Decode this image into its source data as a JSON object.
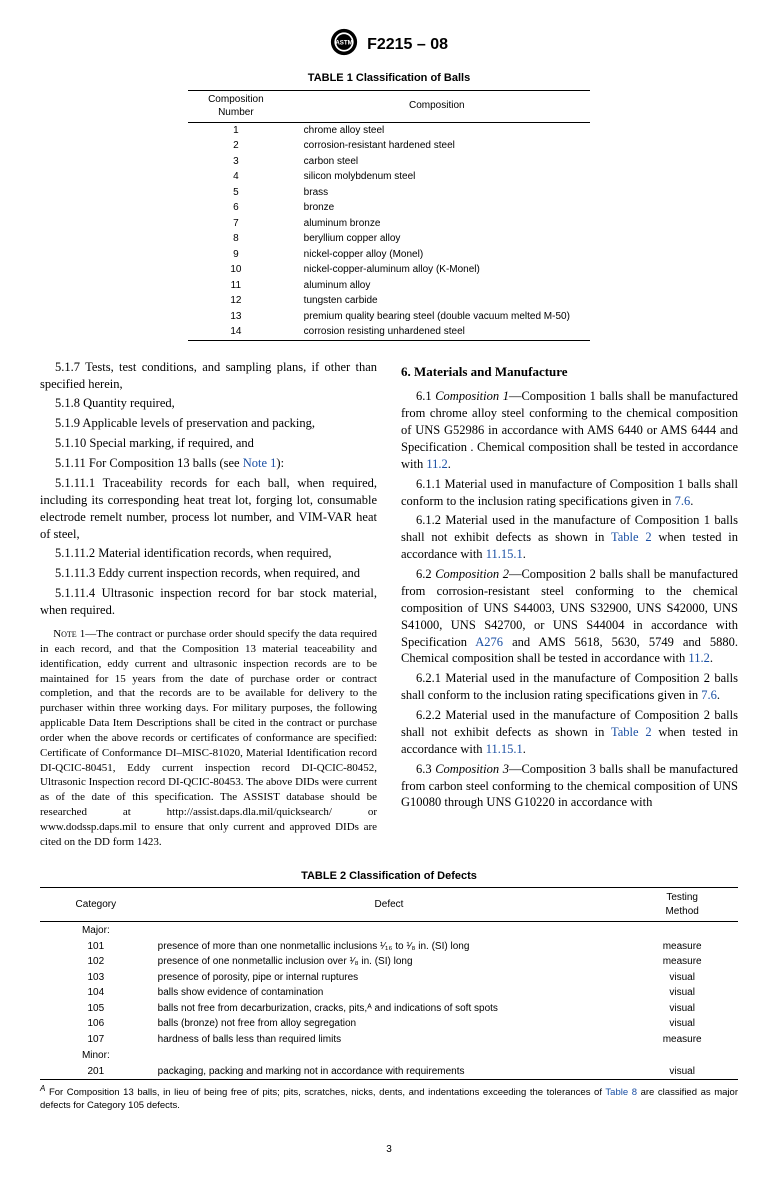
{
  "doc_number": "F2215 – 08",
  "table1": {
    "title": "TABLE 1 Classification of Balls",
    "head_left": "Composition\nNumber",
    "head_right": "Composition",
    "rows": [
      [
        "1",
        "chrome alloy steel"
      ],
      [
        "2",
        "corrosion-resistant hardened steel"
      ],
      [
        "3",
        "carbon steel"
      ],
      [
        "4",
        "silicon molybdenum steel"
      ],
      [
        "5",
        "brass"
      ],
      [
        "6",
        "bronze"
      ],
      [
        "7",
        "aluminum bronze"
      ],
      [
        "8",
        "beryllium copper alloy"
      ],
      [
        "9",
        "nickel-copper alloy (Monel)"
      ],
      [
        "10",
        "nickel-copper-aluminum alloy (K-Monel)"
      ],
      [
        "11",
        "aluminum alloy"
      ],
      [
        "12",
        "tungsten carbide"
      ],
      [
        "13",
        "premium quality bearing steel (double vacuum melted M-50)"
      ],
      [
        "14",
        "corrosion resisting unhardened steel"
      ]
    ]
  },
  "left": {
    "p517": "5.1.7 Tests, test conditions, and sampling plans, if other than specified herein,",
    "p518": "5.1.8 Quantity required,",
    "p519": "5.1.9 Applicable levels of preservation and packing,",
    "p5110": "5.1.10 Special marking, if required, and",
    "p5111a": "5.1.11 For Composition 13 balls (see ",
    "p5111_link": "Note 1",
    "p5111b": "):",
    "p51111": "5.1.11.1 Traceability records for each ball, when required, including its corresponding heat treat lot, forging lot, consumable electrode remelt number, process lot number, and VIM-VAR heat of steel,",
    "p51112": "5.1.11.2 Material identification records, when required,",
    "p51113": "5.1.11.3 Eddy current inspection records, when required, and",
    "p51114": "5.1.11.4 Ultrasonic inspection record for bar stock material, when required.",
    "note_lead": "Note",
    "note_body": " 1—The contract or purchase order should specify the data required in each record, and that the Composition 13 material teaceability and identification, eddy current and ultrasonic inspection records are to be maintained for 15 years from the date of purchase order or contract completion, and that the records are to be available for delivery to the purchaser within three working days. For military purposes, the following applicable Data Item Descriptions shall be cited in the contract or purchase order when the above records or certificates of conformance are specified: Certificate of Conformance DI–MISC-81020, Material Identification record DI-QCIC-80451, Eddy current inspection record DI-QCIC-80452, Ultrasonic Inspection record DI-QCIC-80453. The above DIDs were current as of the date of this specification. The ASSIST database should be researched at http://assist.daps.dla.mil/quicksearch/ or www.dodssp.daps.mil to ensure that only current and approved DIDs are cited on the DD form 1423."
  },
  "right": {
    "h6": "6.  Materials and Manufacture",
    "p61a": "6.1 ",
    "p61_ital": "Composition 1",
    "p61b": "—Composition 1 balls shall be manufactured from chrome alloy steel conforming to the chemical composition of UNS G52986 in accordance with AMS 6440 or AMS 6444 and Specification . Chemical composition shall be tested in accordance with ",
    "p61_link": "11.2",
    "p61c": ".",
    "p611a": "6.1.1 Material used in manufacture of Composition 1 balls shall conform to the inclusion rating specifications given in ",
    "p611_link": "7.6",
    "p611b": ".",
    "p612a": "6.1.2 Material used in the manufacture of Composition 1 balls shall not exhibit defects as shown in ",
    "p612_link1": "Table 2",
    "p612b": " when tested in accordance with ",
    "p612_link2": "11.15.1",
    "p612c": ".",
    "p62a": "6.2 ",
    "p62_ital": "Composition 2",
    "p62b": "—Composition 2 balls shall be manufactured from corrosion-resistant steel conforming to the chemical composition of UNS S44003, UNS S32900, UNS S42000, UNS S41000, UNS S42700, or UNS S44004 in accordance with Specification ",
    "p62_link1": "A276",
    "p62c": " and AMS 5618, 5630, 5749 and 5880. Chemical composition shall be tested in accordance with ",
    "p62_link2": "11.2",
    "p62d": ".",
    "p621a": "6.2.1 Material used in the manufacture of Composition 2 balls shall conform to the inclusion rating specifications given in ",
    "p621_link": "7.6",
    "p621b": ".",
    "p622a": "6.2.2 Material used in the manufacture of Composition 2 balls shall not exhibit defects as shown in ",
    "p622_link1": "Table 2",
    "p622b": " when tested in accordance with ",
    "p622_link2": "11.15.1",
    "p622c": ".",
    "p63a": "6.3 ",
    "p63_ital": "Composition 3",
    "p63b": "—Composition 3 balls shall be manufactured from carbon steel conforming to the chemical composition of UNS G10080 through UNS G10220 in accordance with"
  },
  "table2": {
    "title": "TABLE 2 Classification of Defects",
    "head1": "Category",
    "head2": "Defect",
    "head3": "Testing\nMethod",
    "major_label": "Major:",
    "minor_label": "Minor:",
    "major_rows": [
      [
        "101",
        "presence of more than one nonmetallic inclusions ¹⁄₁₆ to ¹⁄₈ in. (SI) long",
        "measure"
      ],
      [
        "102",
        "presence of one nonmetallic inclusion over ¹⁄₈ in. (SI) long",
        "measure"
      ],
      [
        "103",
        "presence of porosity, pipe or internal ruptures",
        "visual"
      ],
      [
        "104",
        "balls show evidence of contamination",
        "visual"
      ],
      [
        "105",
        "balls not free from decarburization, cracks, pits,ᴬ and indications of soft spots",
        "visual"
      ],
      [
        "106",
        "balls (bronze) not free from alloy segregation",
        "visual"
      ],
      [
        "107",
        "hardness of balls less than required limits",
        "measure"
      ]
    ],
    "minor_rows": [
      [
        "201",
        "packaging, packing and marking not in accordance with requirements",
        "visual"
      ]
    ]
  },
  "footnote": {
    "sup": "A",
    "a": " For Composition 13 balls, in lieu of being free of pits; pits, scratches, nicks, dents, and indentations exceeding the tolerances of ",
    "link": "Table 8",
    "b": " are classified as major defects for Category 105 defects."
  },
  "page_number": "3"
}
